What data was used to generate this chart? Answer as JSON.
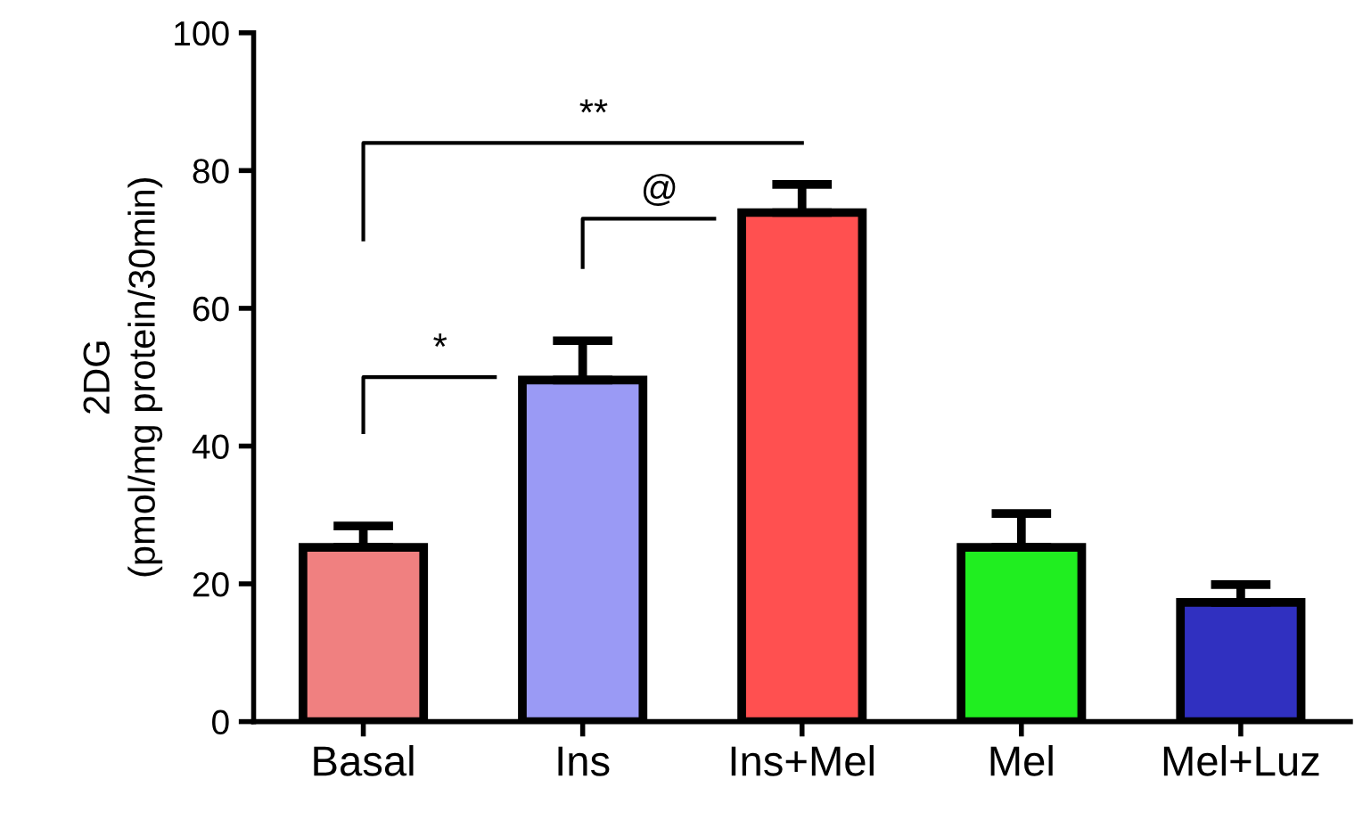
{
  "chart_data": {
    "type": "bar",
    "ylabel": "2DG\n(pmol/mg protein/30min)",
    "categories": [
      "Basal",
      "Ins",
      "Ins+Mel",
      "Mel",
      "Mel+Luz"
    ],
    "values": [
      25.3,
      49.6,
      73.9,
      25.3,
      17.3
    ],
    "colors": [
      "#f08080",
      "#9a9af5",
      "#ff5050",
      "#20ee20",
      "#3030c0"
    ],
    "errors": [
      [
        25.3,
        28.4
      ],
      [
        49.6,
        55.3
      ],
      [
        73.9,
        78.0
      ],
      [
        25.3,
        30.2
      ],
      [
        17.3,
        19.9
      ]
    ],
    "ylim": [
      0,
      100
    ],
    "yticks": [
      0,
      20,
      40,
      60,
      80,
      100
    ],
    "grid": false,
    "legend": false,
    "annotations": [
      "*",
      "@",
      "**"
    ]
  }
}
